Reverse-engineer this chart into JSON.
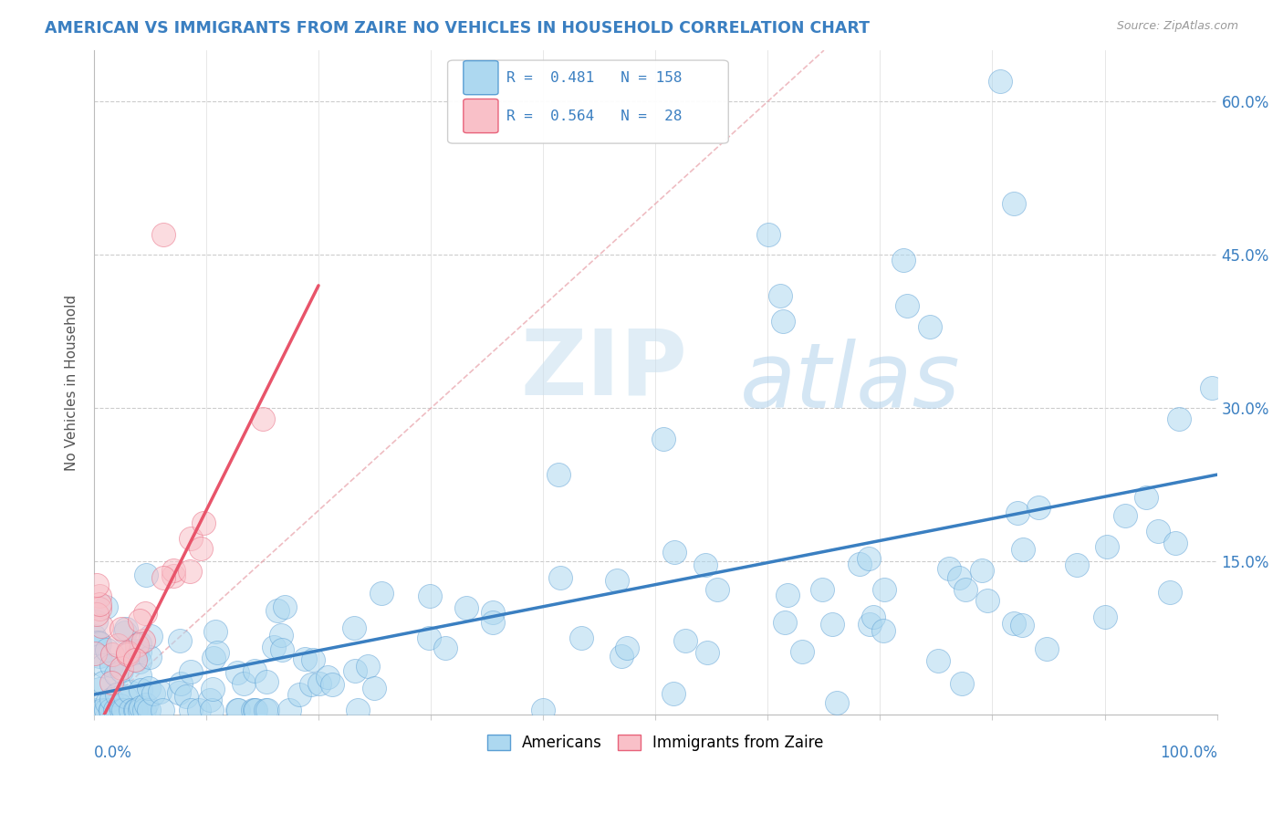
{
  "title": "AMERICAN VS IMMIGRANTS FROM ZAIRE NO VEHICLES IN HOUSEHOLD CORRELATION CHART",
  "source": "Source: ZipAtlas.com",
  "ylabel": "No Vehicles in Household",
  "ytick_vals": [
    0.0,
    0.15,
    0.3,
    0.45,
    0.6
  ],
  "ytick_labels": [
    "",
    "15.0%",
    "30.0%",
    "45.0%",
    "60.0%"
  ],
  "legend_r1": "R = 0.481",
  "legend_n1": "N = 158",
  "legend_r2": "R = 0.564",
  "legend_n2": "N =  28",
  "color_american": "#ADD8F0",
  "color_zaire": "#F9C0C8",
  "color_american_edge": "#5B9FD4",
  "color_zaire_edge": "#E8627A",
  "color_american_line": "#3A7FC1",
  "color_zaire_line": "#E8546A",
  "color_title": "#3A7FC1",
  "color_legend_text": "#3A7FC1",
  "watermark_zip": "ZIP",
  "watermark_atlas": "atlas",
  "background": "#FFFFFF",
  "seed": 99
}
